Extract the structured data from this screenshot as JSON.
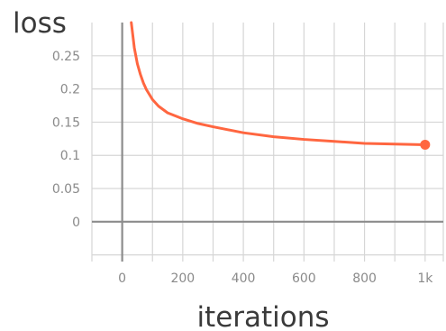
{
  "chart_data": {
    "type": "line",
    "xlabel": "iterations",
    "ylabel": "loss",
    "xlim": [
      -100,
      1060
    ],
    "ylim": [
      -0.06,
      0.3
    ],
    "x_ticks": [
      0,
      200,
      400,
      600,
      800,
      1000
    ],
    "x_tick_labels": [
      "0",
      "200",
      "400",
      "600",
      "800",
      "1k"
    ],
    "y_ticks": [
      0,
      0.05,
      0.1,
      0.15,
      0.2,
      0.25
    ],
    "y_tick_labels": [
      "0",
      "0.05",
      "0.1",
      "0.15",
      "0.2",
      "0.25"
    ],
    "x_minor_ticks": [
      -100,
      100,
      300,
      500,
      700,
      900
    ],
    "y_minor_ticks": [
      -0.05
    ],
    "grid": true,
    "series": [
      {
        "color": "#ff6640",
        "x": [
          30,
          40,
          50,
          60,
          70,
          80,
          100,
          120,
          150,
          200,
          250,
          300,
          400,
          500,
          600,
          700,
          800,
          900,
          1000
        ],
        "y": [
          0.3,
          0.262,
          0.238,
          0.222,
          0.209,
          0.199,
          0.184,
          0.174,
          0.164,
          0.155,
          0.148,
          0.143,
          0.134,
          0.128,
          0.124,
          0.121,
          0.118,
          0.117,
          0.116
        ],
        "end_marker": true
      }
    ]
  }
}
